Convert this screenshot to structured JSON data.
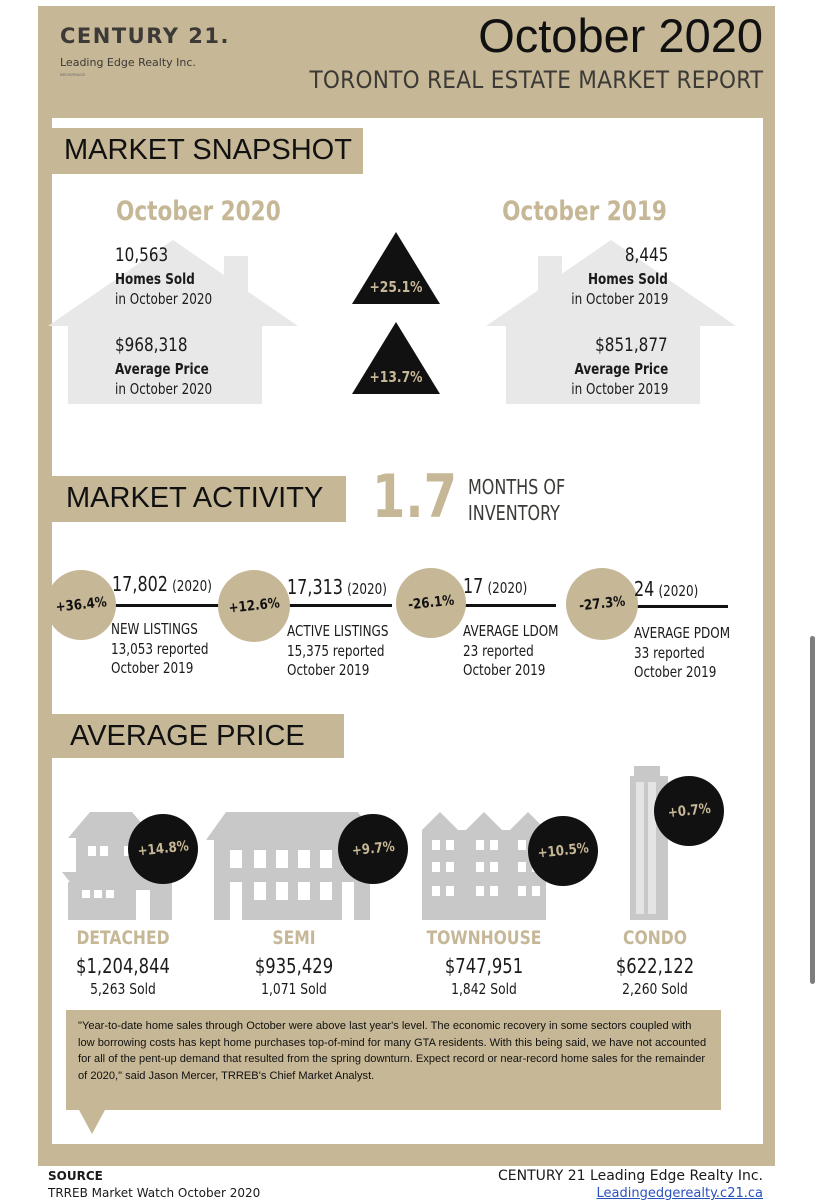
{
  "header": {
    "logo_main": "CENTURY 21.",
    "logo_sub": "Leading Edge Realty Inc.",
    "logo_tiny": "BROKERAGE",
    "title": "October 2020",
    "subtitle": "TORONTO REAL ESTATE MARKET REPORT"
  },
  "snapshot": {
    "section_title": "MARKET SNAPSHOT",
    "current": {
      "heading": "October 2020",
      "homes_sold_value": "10,563",
      "homes_sold_label": "Homes Sold",
      "homes_sold_period": "in October 2020",
      "avg_price_value": "$968,318",
      "avg_price_label": "Average Price",
      "avg_price_period": "in October 2020"
    },
    "previous": {
      "heading": "October 2019",
      "homes_sold_value": "8,445",
      "homes_sold_label": "Homes Sold",
      "homes_sold_period": "in October 2019",
      "avg_price_value": "$851,877",
      "avg_price_label": "Average Price",
      "avg_price_period": "in October 2019"
    },
    "homes_sold_change": "+25.1%",
    "avg_price_change": "+13.7%"
  },
  "activity": {
    "section_title": "MARKET ACTIVITY",
    "months_value": "1.7",
    "months_line1": "MONTHS OF",
    "months_line2": "INVENTORY",
    "items": [
      {
        "change": "+36.4%",
        "value": "17,802",
        "year": "(2020)",
        "label": "NEW LISTINGS",
        "prev_line1": "13,053 reported",
        "prev_line2": "October 2019"
      },
      {
        "change": "+12.6%",
        "value": "17,313",
        "year": "(2020)",
        "label": "ACTIVE LISTINGS",
        "prev_line1": "15,375 reported",
        "prev_line2": "October 2019"
      },
      {
        "change": "-26.1%",
        "value": "17",
        "year": "(2020)",
        "label": "AVERAGE LDOM",
        "prev_line1": "23 reported",
        "prev_line2": "October 2019"
      },
      {
        "change": "-27.3%",
        "value": "24",
        "year": "(2020)",
        "label": "AVERAGE PDOM",
        "prev_line1": "33 reported",
        "prev_line2": "October 2019"
      }
    ]
  },
  "avg_price": {
    "section_title": "AVERAGE PRICE",
    "types": [
      {
        "name": "DETACHED",
        "price": "$1,204,844",
        "sold": "5,263 Sold",
        "change": "+14.8%"
      },
      {
        "name": "SEMI",
        "price": "$935,429",
        "sold": "1,071 Sold",
        "change": "+9.7%"
      },
      {
        "name": "TOWNHOUSE",
        "price": "$747,951",
        "sold": "1,842 Sold",
        "change": "+10.5%"
      },
      {
        "name": "CONDO",
        "price": "$622,122",
        "sold": "2,260 Sold",
        "change": "+0.7%"
      }
    ]
  },
  "quote": "\"Year-to-date home sales through October were above last year's level. The economic recovery in some sectors coupled with low borrowing costs has kept home purchases top-of-mind for many GTA residents. With this being said, we have not accounted for all of the pent-up demand that resulted from the spring downturn. Expect record or near-record home sales for the remainder of 2020,\" said Jason Mercer, TRREB's Chief Market Analyst.",
  "footer": {
    "source_label": "SOURCE",
    "source_text": "TRREB Market Watch October 2020",
    "company": "CENTURY 21 Leading Edge Realty Inc.",
    "website": "Leadingedgerealty.c21.ca"
  },
  "colors": {
    "gold": "#c6b796",
    "dark": "#111111",
    "house_gray": "#e6e6e6",
    "building_gray": "#c8c8c8"
  }
}
